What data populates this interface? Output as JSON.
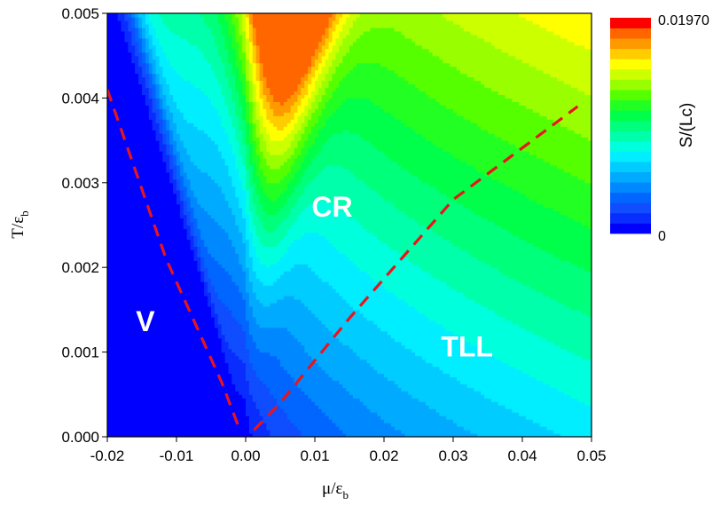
{
  "chart_data": {
    "type": "heatmap",
    "title": "",
    "xlabel": {
      "main": "μ/ε",
      "sub": "b"
    },
    "ylabel": {
      "main": "T/ε",
      "sub": "b"
    },
    "xlim": [
      -0.02,
      0.05
    ],
    "ylim": [
      0.0,
      0.005
    ],
    "x_ticks": [
      -0.02,
      -0.01,
      0.0,
      0.01,
      0.02,
      0.03,
      0.04,
      0.05
    ],
    "x_tick_labels": [
      "-0.02",
      "-0.01",
      "0.00",
      "0.01",
      "0.02",
      "0.03",
      "0.04",
      "0.05"
    ],
    "y_ticks": [
      0.0,
      0.001,
      0.002,
      0.003,
      0.004,
      0.005
    ],
    "y_tick_labels": [
      "0.000",
      "0.001",
      "0.002",
      "0.003",
      "0.004",
      "0.005"
    ],
    "colorbar": {
      "title": "S/(Lc)",
      "min": 0,
      "max": 0.0197,
      "min_label": "0",
      "max_label": "0.01970",
      "levels": 20,
      "colors": [
        "#0000ff",
        "#0a2dff",
        "#0f4dff",
        "#0066ff",
        "#0088ff",
        "#00aaff",
        "#00ccff",
        "#00eeff",
        "#00ffdd",
        "#00ffaa",
        "#00ff7a",
        "#00ff4a",
        "#22ff22",
        "#55ff00",
        "#99ff00",
        "#ccff00",
        "#ffff00",
        "#ffcc00",
        "#ff9900",
        "#ff6600",
        "#ff0000"
      ]
    },
    "crossover_lines": [
      {
        "style": "dashed",
        "color": "#e8151b",
        "points": [
          [
            -0.02,
            0.0041
          ],
          [
            -0.0115,
            0.0021
          ],
          [
            -0.0035,
            0.00065
          ],
          [
            -0.0008,
            7e-05
          ]
        ]
      },
      {
        "style": "dashed",
        "color": "#e8151b",
        "points": [
          [
            0.0012,
            8e-05
          ],
          [
            0.005,
            0.0004
          ],
          [
            0.015,
            0.0014
          ],
          [
            0.03,
            0.0028
          ],
          [
            0.048,
            0.0039
          ]
        ]
      }
    ],
    "annotations": [
      {
        "text": "V",
        "x": -0.0145,
        "y": 0.00125
      },
      {
        "text": "CR",
        "x": 0.0125,
        "y": 0.0026
      },
      {
        "text": "TLL",
        "x": 0.032,
        "y": 0.00095
      }
    ]
  }
}
